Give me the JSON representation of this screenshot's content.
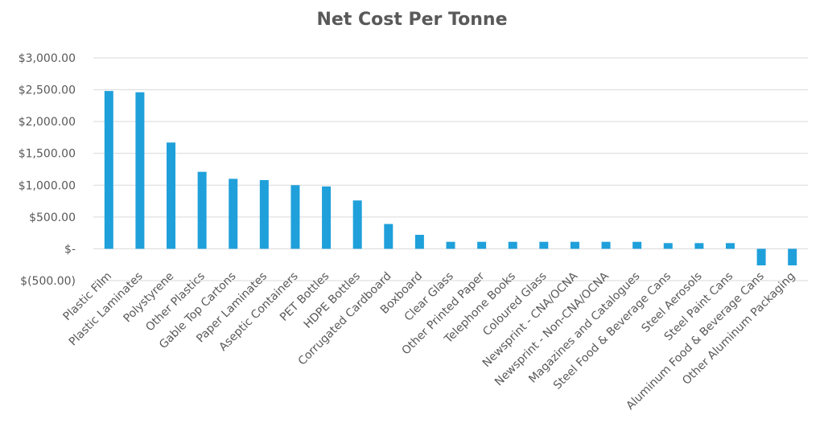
{
  "chart_data": {
    "type": "bar",
    "title": "Net Cost Per Tonne",
    "xlabel": "",
    "ylabel": "",
    "ylim": [
      -500,
      3000
    ],
    "yticks": [
      {
        "value": 3000,
        "label": "$3,000.00"
      },
      {
        "value": 2500,
        "label": "$2,500.00"
      },
      {
        "value": 2000,
        "label": "$2,000.00"
      },
      {
        "value": 1500,
        "label": "$1,500.00"
      },
      {
        "value": 1000,
        "label": "$1,000.00"
      },
      {
        "value": 500,
        "label": "$500.00"
      },
      {
        "value": 0,
        "label": "$-"
      },
      {
        "value": -500,
        "label": "$(500.00)"
      }
    ],
    "grid": true,
    "legend": "none",
    "bar_color": "#1fa0db",
    "grid_color": "#d9d9d9",
    "categories": [
      "Plastic Film",
      "Plastic Laminates",
      "Polystyrene",
      "Other Plastics",
      "Gable Top Cartons",
      "Paper Laminates",
      "Aseptic Containers",
      "PET Bottles",
      "HDPE Bottles",
      "Corrugated Cardboard",
      "Boxboard",
      "Clear Glass",
      "Other Printed Paper",
      "Telephone Books",
      "Coloured Glass",
      "Newsprint - CNA/OCNA",
      "Newsprint - Non-CNA/OCNA",
      "Magazines and Catalogues",
      "Steel Food & Beverage Cans",
      "Steel Aerosols",
      "Steel Paint Cans",
      "Aluminum Food & Beverage Cans",
      "Other Aluminum Packaging"
    ],
    "values": [
      2480,
      2460,
      1670,
      1210,
      1100,
      1080,
      1000,
      980,
      760,
      390,
      220,
      110,
      110,
      110,
      110,
      110,
      110,
      110,
      90,
      90,
      90,
      -260,
      -260
    ]
  }
}
